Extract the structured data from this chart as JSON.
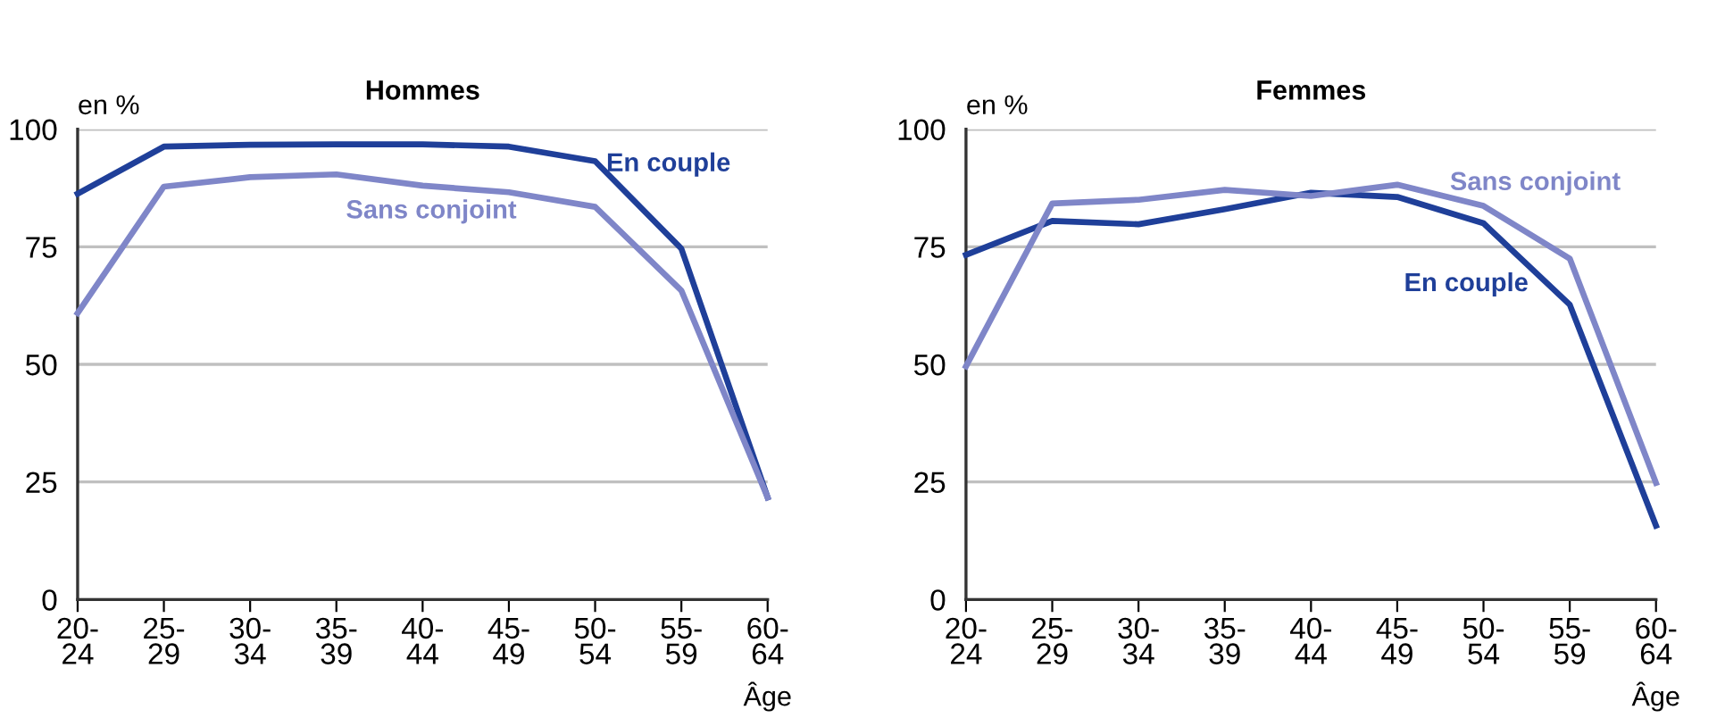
{
  "chart_data": [
    {
      "type": "line",
      "title": "Hommes",
      "ylabel": "en %",
      "xlabel": "Âge",
      "categories": [
        "20-\n24",
        "25-\n29",
        "30-\n34",
        "35-\n39",
        "40-\n44",
        "45-\n49",
        "50-\n54",
        "55-\n59",
        "60-\n64"
      ],
      "series": [
        {
          "name": "En couple",
          "color": "#1f3f99",
          "values": [
            86.3,
            96.3,
            96.7,
            96.8,
            96.8,
            96.3,
            93.2,
            74.6,
            21.7
          ]
        },
        {
          "name": "Sans conjoint",
          "color": "#7f86c8",
          "values": [
            60.9,
            87.8,
            89.8,
            90.4,
            88.0,
            86.6,
            83.5,
            65.7,
            21.7
          ]
        }
      ],
      "ylim": [
        0,
        100
      ],
      "yticks": [
        0,
        25,
        50,
        75,
        100
      ],
      "grid": "y",
      "legend": false,
      "marker": "none",
      "line_style": "solid"
    },
    {
      "type": "line",
      "title": "Femmes",
      "ylabel": "en %",
      "xlabel": "Âge",
      "categories": [
        "20-\n24",
        "25-\n29",
        "30-\n34",
        "35-\n39",
        "40-\n44",
        "45-\n49",
        "50-\n54",
        "55-\n59",
        "60-\n64"
      ],
      "series": [
        {
          "name": "En couple",
          "color": "#1f3f99",
          "values": [
            73.3,
            80.5,
            79.8,
            83.0,
            86.5,
            85.6,
            80.0,
            62.7,
            15.7
          ]
        },
        {
          "name": "Sans conjoint",
          "color": "#7f86c8",
          "values": [
            49.6,
            84.2,
            85.0,
            87.1,
            85.8,
            88.2,
            83.7,
            72.5,
            24.8
          ]
        }
      ],
      "ylim": [
        0,
        100
      ],
      "yticks": [
        0,
        25,
        50,
        75,
        100
      ],
      "grid": "y",
      "legend": false,
      "marker": "none",
      "line_style": "solid"
    }
  ]
}
